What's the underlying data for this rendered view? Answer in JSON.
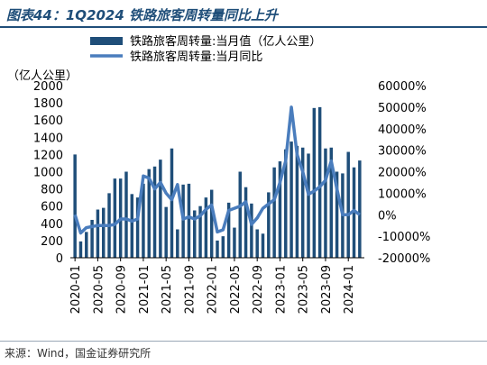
{
  "figure": {
    "title": "图表44：1Q2024 铁路旅客周转量同比上升",
    "source": "来源：Wind，国金证券研究所"
  },
  "chart_data": {
    "type": "bar+line",
    "left_axis_unit": "（亿人公里）",
    "left_ylim": [
      0,
      2000
    ],
    "left_ticks": [
      0,
      200,
      400,
      600,
      800,
      1000,
      1200,
      1400,
      1600,
      1800,
      2000
    ],
    "right_ylim": [
      -20000,
      60000
    ],
    "right_ticks": [
      "-20000%",
      "-10000%",
      "0%",
      "10000%",
      "20000%",
      "30000%",
      "40000%",
      "50000%",
      "60000%"
    ],
    "x_tick_labels": [
      "2020-01",
      "2020-05",
      "2020-09",
      "2021-01",
      "2021-05",
      "2021-09",
      "2022-01",
      "2022-05",
      "2022-09",
      "2023-01",
      "2023-05",
      "2023-09",
      "2024-01"
    ],
    "x_tick_every": 4,
    "months": [
      "2020-01",
      "2020-02",
      "2020-03",
      "2020-04",
      "2020-05",
      "2020-06",
      "2020-07",
      "2020-08",
      "2020-09",
      "2020-10",
      "2020-11",
      "2020-12",
      "2021-01",
      "2021-02",
      "2021-03",
      "2021-04",
      "2021-05",
      "2021-06",
      "2021-07",
      "2021-08",
      "2021-09",
      "2021-10",
      "2021-11",
      "2021-12",
      "2022-01",
      "2022-02",
      "2022-03",
      "2022-04",
      "2022-05",
      "2022-06",
      "2022-07",
      "2022-08",
      "2022-09",
      "2022-10",
      "2022-11",
      "2022-12",
      "2023-01",
      "2023-02",
      "2023-03",
      "2023-04",
      "2023-05",
      "2023-06",
      "2023-07",
      "2023-08",
      "2023-09",
      "2023-10",
      "2023-11",
      "2023-12",
      "2024-01",
      "2024-02",
      "2024-03"
    ],
    "series": [
      {
        "name": "铁路旅客周转量:当月值（亿人公里）",
        "kind": "bar",
        "axis": "left",
        "color": "#1f4e79",
        "values": [
          1200,
          190,
          300,
          440,
          560,
          580,
          750,
          920,
          920,
          1000,
          740,
          700,
          860,
          1030,
          1060,
          1140,
          590,
          1270,
          330,
          850,
          860,
          550,
          600,
          700,
          790,
          200,
          250,
          640,
          350,
          1000,
          820,
          630,
          330,
          280,
          760,
          1050,
          1120,
          1260,
          1350,
          1300,
          1280,
          1210,
          1740,
          1750,
          1270,
          1280,
          1000,
          980,
          1230,
          1050,
          1130
        ]
      },
      {
        "name": "铁路旅客周转量:当月同比",
        "kind": "line",
        "axis": "right",
        "color": "#4a7dbd",
        "values": [
          0,
          -8500,
          -6000,
          -5500,
          -5000,
          -5000,
          -5000,
          -4500,
          -2000,
          -2000,
          -3000,
          -2000,
          18000,
          17000,
          12000,
          15000,
          10000,
          7000,
          14000,
          -2000,
          -1000,
          -2000,
          -500,
          2500,
          4500,
          -8000,
          -7000,
          2000,
          3000,
          4000,
          6000,
          -4500,
          -1500,
          3000,
          5000,
          7000,
          15000,
          25000,
          50000,
          28000,
          20000,
          9500,
          11000,
          13000,
          16000,
          25000,
          12000,
          0,
          0,
          2000,
          0
        ]
      }
    ]
  }
}
